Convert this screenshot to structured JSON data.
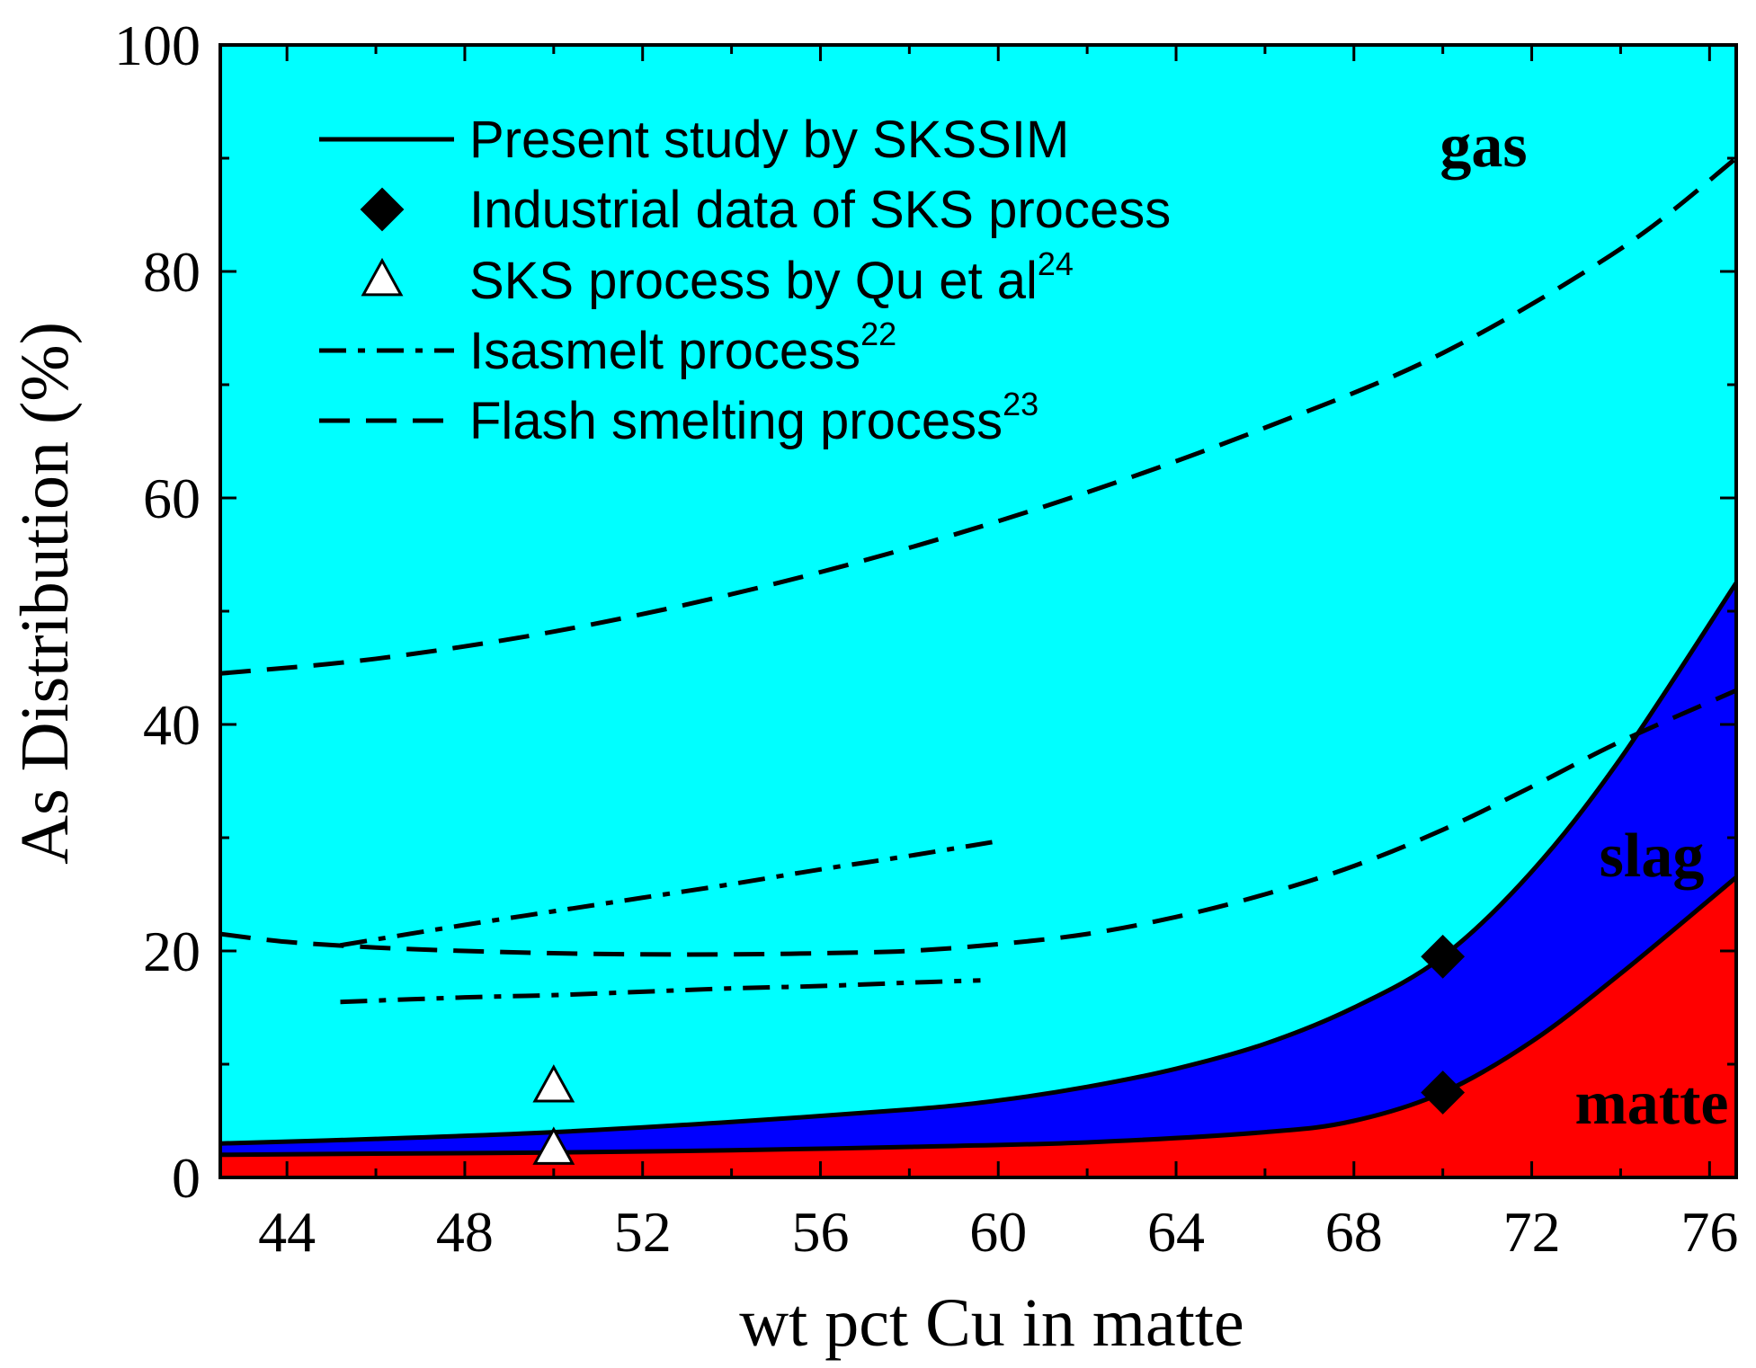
{
  "chart_data": {
    "type": "area",
    "xlabel": "wt pct Cu in matte",
    "ylabel": "As Distribution (%)",
    "xlim": [
      42.5,
      76.6
    ],
    "ylim": [
      0,
      100
    ],
    "x_ticks": [
      44,
      48,
      52,
      56,
      60,
      64,
      68,
      72,
      76
    ],
    "y_ticks": [
      0,
      20,
      40,
      60,
      80,
      100
    ],
    "colors": {
      "gas": "#00ffff",
      "slag": "#0000ff",
      "matte": "#ff0000"
    },
    "region_labels": [
      {
        "name": "gas",
        "text": "gas"
      },
      {
        "name": "slag",
        "text": "slag"
      },
      {
        "name": "matte",
        "text": "matte"
      }
    ],
    "series": [
      {
        "name": "matte_boundary",
        "style": "solid",
        "x": [
          42.5,
          46,
          50,
          54,
          58,
          62,
          66,
          68,
          70,
          72,
          74,
          76.6
        ],
        "y": [
          2.0,
          2.1,
          2.2,
          2.4,
          2.7,
          3.1,
          4.0,
          5.0,
          7.5,
          12.0,
          18.0,
          26.5
        ]
      },
      {
        "name": "slag_boundary",
        "style": "solid",
        "x": [
          42.5,
          46,
          50,
          54,
          58,
          60,
          62,
          64,
          66,
          68,
          70,
          72,
          74,
          76.6
        ],
        "y": [
          3.0,
          3.4,
          4.0,
          4.9,
          6.0,
          6.8,
          8.0,
          9.6,
          11.8,
          15.0,
          19.5,
          27.0,
          37.0,
          52.5
        ]
      },
      {
        "name": "Flash smelting upper",
        "style": "dashed",
        "x": [
          42.5,
          46,
          50,
          54,
          58,
          62,
          66,
          70,
          74,
          76.6
        ],
        "y": [
          44.5,
          45.8,
          48.2,
          51.5,
          55.6,
          60.5,
          66.2,
          72.8,
          82.0,
          90.0
        ]
      },
      {
        "name": "Flash smelting lower",
        "style": "dashed",
        "x": [
          42.5,
          44,
          46,
          48,
          50,
          52,
          54,
          56,
          58,
          60,
          62,
          64,
          66,
          68,
          70,
          72,
          74,
          76.6
        ],
        "y": [
          21.5,
          20.8,
          20.3,
          20.0,
          19.8,
          19.7,
          19.7,
          19.8,
          20.0,
          20.6,
          21.5,
          23.0,
          25.0,
          27.5,
          30.7,
          34.5,
          38.5,
          43.0
        ]
      },
      {
        "name": "Isasmelt upper",
        "style": "dashdot",
        "x": [
          45.2,
          48,
          50,
          52,
          54,
          56,
          58,
          60
        ],
        "y": [
          20.5,
          22.3,
          23.5,
          24.7,
          25.9,
          27.2,
          28.4,
          29.7
        ]
      },
      {
        "name": "Isasmelt lower",
        "style": "dashdot",
        "x": [
          45.2,
          48,
          50,
          52,
          54,
          56,
          58,
          59.6
        ],
        "y": [
          15.5,
          15.9,
          16.1,
          16.4,
          16.7,
          16.9,
          17.2,
          17.4
        ]
      }
    ],
    "points": {
      "industrial": [
        {
          "x": 70,
          "y": 19.5
        },
        {
          "x": 70,
          "y": 7.5
        }
      ],
      "qu": [
        {
          "x": 50,
          "y": 8.0
        },
        {
          "x": 50,
          "y": 2.5
        }
      ]
    },
    "legend": [
      {
        "id": "present",
        "symbol": "solid-line",
        "text": "Present study by SKSSIM",
        "sup": ""
      },
      {
        "id": "industrial",
        "symbol": "filled-diamond",
        "text": "Industrial data of SKS process",
        "sup": ""
      },
      {
        "id": "qu",
        "symbol": "open-triangle",
        "text": "SKS process by Qu et al",
        "sup": "24"
      },
      {
        "id": "isasmelt",
        "symbol": "dashdot-line",
        "text": "Isasmelt process",
        "sup": "22"
      },
      {
        "id": "flash",
        "symbol": "dashed-line",
        "text": "Flash smelting process",
        "sup": "23"
      }
    ]
  }
}
